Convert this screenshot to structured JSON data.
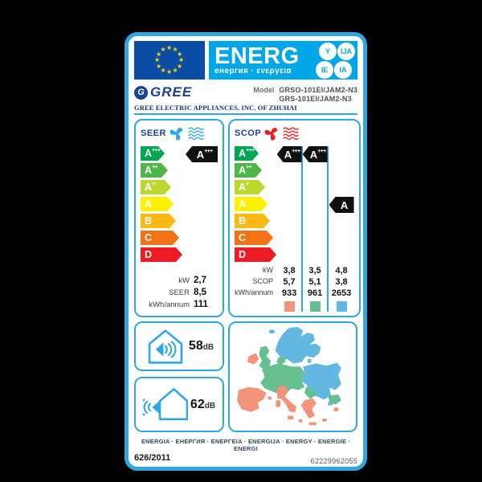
{
  "colors": {
    "accent": "#2fa8e1",
    "band": "#00a7e8",
    "flagblue": "#0a4da4",
    "star": "#ffd500",
    "navy": "#1b4297",
    "logo": "#1b3f94",
    "cool": "#2fa8e1",
    "heat": "#ed1c24",
    "warm": "#f2937b",
    "average": "#66bf8f",
    "cold": "#62b8e0"
  },
  "header": {
    "title": "ENERG",
    "subtitle": "енергия · ενεργεια",
    "suffix_y": "Y",
    "suffix_ija": "IJA",
    "suffix_ie": "IE",
    "suffix_ia": "IA"
  },
  "brand": {
    "logo_letter": "G",
    "logo_text": "GREE",
    "company": "GREE ELECTRIC APPLIANCES, INC. OF ZHUHAI",
    "model_label": "Model",
    "model_line1": "GRSO-101EI/JAM2-N3",
    "model_line2": "GRS-101EI/JAM2-N3"
  },
  "scale": [
    {
      "letter": "A",
      "sup": "+++",
      "color": "#00a651"
    },
    {
      "letter": "A",
      "sup": "++",
      "color": "#4db848"
    },
    {
      "letter": "A",
      "sup": "+",
      "color": "#bed630"
    },
    {
      "letter": "A",
      "sup": "",
      "color": "#fff200"
    },
    {
      "letter": "B",
      "sup": "",
      "color": "#fdb913"
    },
    {
      "letter": "C",
      "sup": "",
      "color": "#f47216"
    },
    {
      "letter": "D",
      "sup": "",
      "color": "#ed1c24"
    }
  ],
  "seer": {
    "label": "SEER",
    "rating": {
      "letter": "A",
      "sup": "+++"
    },
    "rows": [
      {
        "label": "kW",
        "value": "2,7"
      },
      {
        "label": "SEER",
        "value": "8,5"
      },
      {
        "label": "kWh/annum",
        "value": "111"
      }
    ]
  },
  "scop": {
    "label": "SCOP",
    "row_labels": [
      "kW",
      "SCOP",
      "kWh/annum"
    ],
    "columns": [
      {
        "rating": {
          "letter": "A",
          "sup": "+++"
        },
        "kw": "3,8",
        "scop": "5,7",
        "kwh": "933",
        "color": "#f2937b"
      },
      {
        "rating": {
          "letter": "A",
          "sup": "+++"
        },
        "kw": "3,5",
        "scop": "5,1",
        "kwh": "961",
        "color": "#66bf8f"
      },
      {
        "rating": {
          "letter": "A",
          "sup": ""
        },
        "kw": "4,8",
        "scop": "3,8",
        "kwh": "2653",
        "color": "#62b8e0"
      }
    ]
  },
  "noise": {
    "indoor": {
      "value": "58",
      "unit": "dB"
    },
    "outdoor": {
      "value": "62",
      "unit": "dB"
    }
  },
  "footer": {
    "energy_words": "ENERGIA · ЕНЕРГИЯ · ΕΝΕΡΓΕΙΑ · ENERGIJA · ENERGY · ENERGIE · ENERGI",
    "regulation": "626/2011",
    "code": "62229962055"
  }
}
